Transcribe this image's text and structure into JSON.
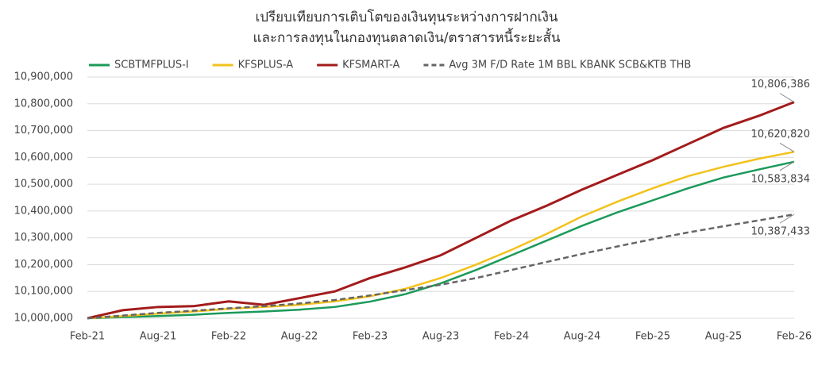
{
  "chart_data": {
    "type": "line",
    "title": [
      "เปรียบเทียบการเติบโตของเงินทุนระหว่างการฝากเงิน",
      "และการลงทุนในกองทุนตลาดเงิน/ตราสารหนี้ระยะสั้น"
    ],
    "categories": [
      "Feb-21",
      null,
      "Aug-21",
      null,
      "Feb-22",
      null,
      "Aug-22",
      null,
      "Feb-23",
      null,
      "Aug-23",
      null,
      "Feb-24",
      null,
      "Aug-24",
      null,
      "Feb-25",
      null,
      "Aug-25",
      null,
      "Feb-26"
    ],
    "series": [
      {
        "name": "SCBTMFPLUS-I",
        "color": "#1a9a5a",
        "dashed": false,
        "values": [
          10000000,
          10004000,
          10008000,
          10013000,
          10020000,
          10025000,
          10032000,
          10042000,
          10062000,
          10090000,
          10130000,
          10180000,
          10235000,
          10290000,
          10345000,
          10395000,
          10440000,
          10485000,
          10525000,
          10555000,
          10583834
        ],
        "value_labels": [
          null,
          null,
          null,
          null,
          null,
          null,
          null,
          null,
          null,
          null,
          null,
          null,
          null,
          null,
          null,
          null,
          null,
          null,
          null,
          null,
          "10,583,834"
        ]
      },
      {
        "name": "KFSPLUS-A",
        "color": "#f2c21b",
        "dashed": false,
        "values": [
          10000000,
          10008000,
          10017000,
          10025000,
          10035000,
          10042000,
          10050000,
          10063000,
          10082000,
          10110000,
          10150000,
          10200000,
          10255000,
          10315000,
          10380000,
          10435000,
          10485000,
          10530000,
          10565000,
          10595000,
          10620820
        ],
        "value_labels": [
          null,
          null,
          null,
          null,
          null,
          null,
          null,
          null,
          null,
          null,
          null,
          null,
          null,
          null,
          null,
          null,
          null,
          null,
          null,
          null,
          "10,620,820"
        ]
      },
      {
        "name": "KFSMART-A",
        "color": "#a31b1b",
        "dashed": false,
        "values": [
          10000000,
          10030000,
          10042000,
          10045000,
          10063000,
          10050000,
          10075000,
          10100000,
          10150000,
          10190000,
          10235000,
          10300000,
          10365000,
          10420000,
          10480000,
          10535000,
          10590000,
          10650000,
          10710000,
          10755000,
          10806386
        ],
        "value_labels": [
          null,
          null,
          null,
          null,
          null,
          null,
          null,
          null,
          null,
          null,
          null,
          null,
          null,
          null,
          null,
          null,
          null,
          null,
          null,
          null,
          "10,806,386"
        ]
      },
      {
        "name": "Avg 3M F/D Rate 1M BBL KBANK SCB&KTB THB",
        "color": "#666666",
        "dashed": true,
        "values": [
          10000000,
          10010000,
          10020000,
          10028000,
          10037000,
          10045000,
          10055000,
          10068000,
          10085000,
          10105000,
          10125000,
          10150000,
          10180000,
          10210000,
          10240000,
          10268000,
          10295000,
          10320000,
          10343000,
          10365000,
          10387433
        ],
        "value_labels": [
          null,
          null,
          null,
          null,
          null,
          null,
          null,
          null,
          null,
          null,
          null,
          null,
          null,
          null,
          null,
          null,
          null,
          null,
          null,
          null,
          "10,387,433"
        ]
      }
    ],
    "ylim": [
      10000000,
      10900000
    ],
    "yticks": [
      {
        "value": 10000000,
        "label": "10,000,000"
      },
      {
        "value": 10100000,
        "label": "10,100,000"
      },
      {
        "value": 10200000,
        "label": "10,200,000"
      },
      {
        "value": 10300000,
        "label": "10,300,000"
      },
      {
        "value": 10400000,
        "label": "10,400,000"
      },
      {
        "value": 10500000,
        "label": "10,500,000"
      },
      {
        "value": 10600000,
        "label": "10,600,000"
      },
      {
        "value": 10700000,
        "label": "10,700,000"
      },
      {
        "value": 10800000,
        "label": "10,800,000"
      },
      {
        "value": 10900000,
        "label": "10,900,000"
      }
    ],
    "grid": true,
    "legend": "top"
  }
}
